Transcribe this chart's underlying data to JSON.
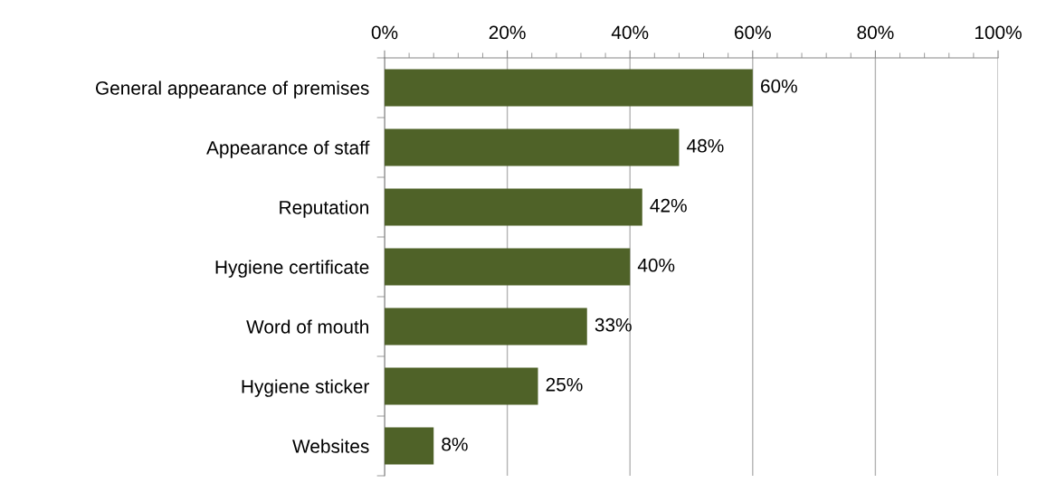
{
  "chart_data": {
    "type": "bar",
    "orientation": "horizontal",
    "categories": [
      "General appearance of premises",
      "Appearance of staff",
      "Reputation",
      "Hygiene certificate",
      "Word of mouth",
      "Hygiene sticker",
      "Websites"
    ],
    "values": [
      60,
      48,
      42,
      40,
      33,
      25,
      8
    ],
    "value_labels": [
      "60%",
      "48%",
      "42%",
      "40%",
      "33%",
      "25%",
      "8%"
    ],
    "color": "#4f6228",
    "xlim": [
      0,
      100
    ],
    "xticks": [
      {
        "value": 0,
        "label": "0%"
      },
      {
        "value": 20,
        "label": "20%"
      },
      {
        "value": 40,
        "label": "40%"
      },
      {
        "value": 60,
        "label": "60%"
      },
      {
        "value": 80,
        "label": "80%"
      },
      {
        "value": 100,
        "label": "100%"
      }
    ],
    "grid": "x"
  }
}
